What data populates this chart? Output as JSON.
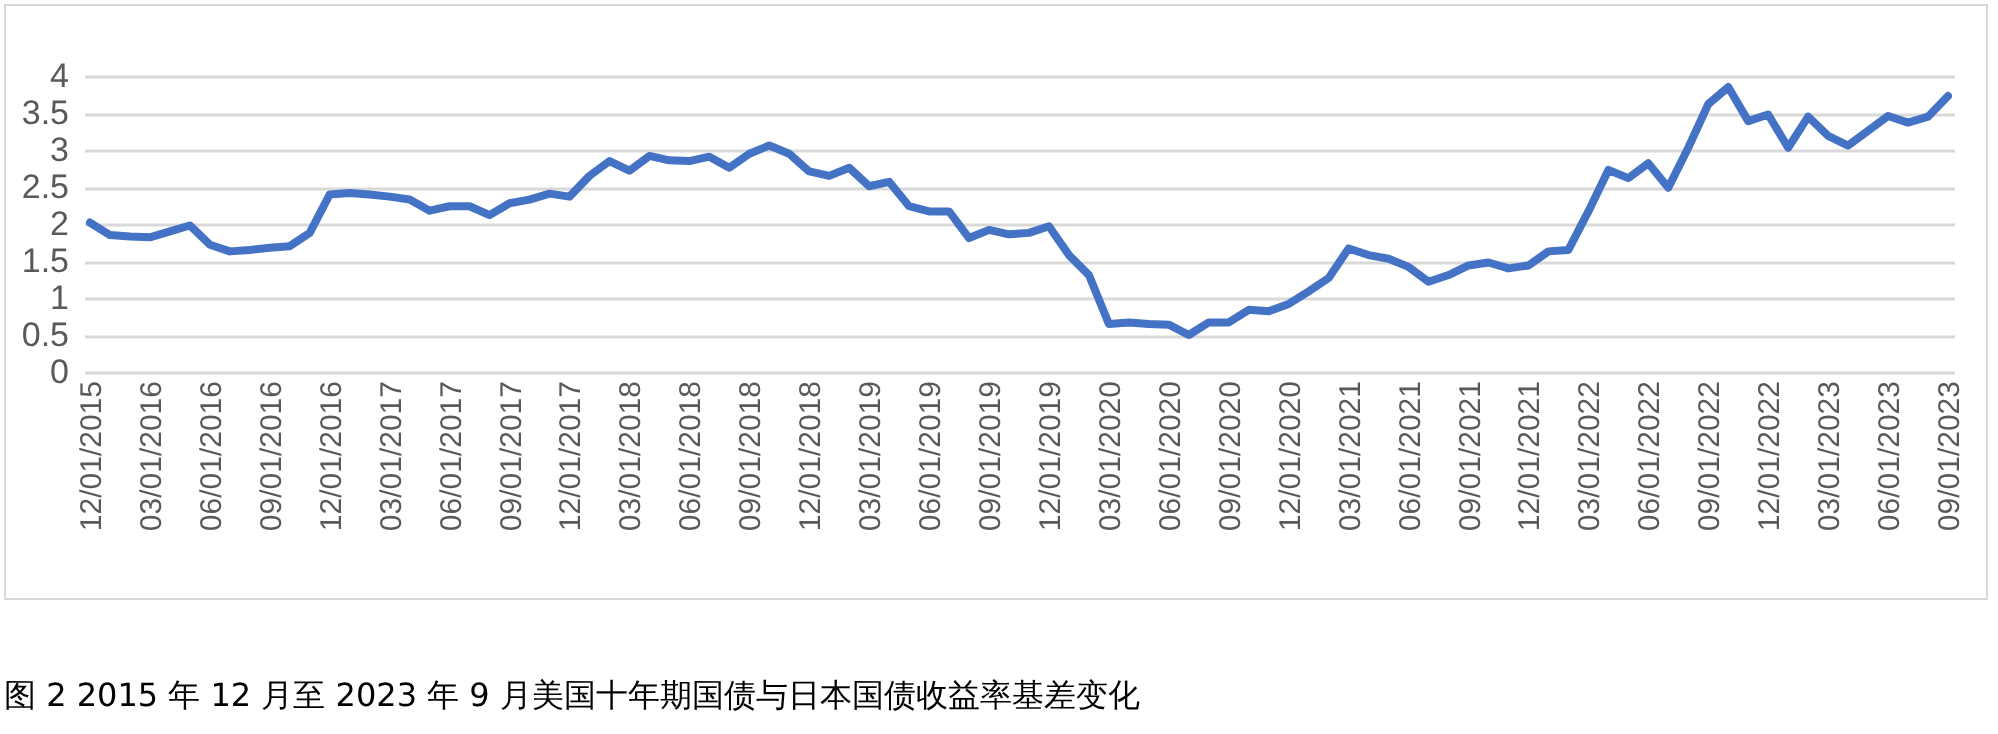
{
  "chart_data": {
    "type": "line",
    "categories": [
      "12/01/2015",
      null,
      null,
      "03/01/2016",
      null,
      null,
      "06/01/2016",
      null,
      null,
      "09/01/2016",
      null,
      null,
      "12/01/2016",
      null,
      null,
      "03/01/2017",
      null,
      null,
      "06/01/2017",
      null,
      null,
      "09/01/2017",
      null,
      null,
      "12/01/2017",
      null,
      null,
      "03/01/2018",
      null,
      null,
      "06/01/2018",
      null,
      null,
      "09/01/2018",
      null,
      null,
      "12/01/2018",
      null,
      null,
      "03/01/2019",
      null,
      null,
      "06/01/2019",
      null,
      null,
      "09/01/2019",
      null,
      null,
      "12/01/2019",
      null,
      null,
      "03/01/2020",
      null,
      null,
      "06/01/2020",
      null,
      null,
      "09/01/2020",
      null,
      null,
      "12/01/2020",
      null,
      null,
      "03/01/2021",
      null,
      null,
      "06/01/2021",
      null,
      null,
      "09/01/2021",
      null,
      null,
      "12/01/2021",
      null,
      null,
      "03/01/2022",
      null,
      null,
      "06/01/2022",
      null,
      null,
      "09/01/2022",
      null,
      null,
      "12/01/2022",
      null,
      null,
      "03/01/2023",
      null,
      null,
      "06/01/2023",
      null,
      null,
      "09/01/2023"
    ],
    "series": [
      {
        "color": "#4472c4",
        "values": [
          2.02,
          1.85,
          1.83,
          1.82,
          1.9,
          1.98,
          1.72,
          1.63,
          1.65,
          1.68,
          1.7,
          1.88,
          2.4,
          2.42,
          2.4,
          2.37,
          2.33,
          2.18,
          2.24,
          2.24,
          2.12,
          2.28,
          2.33,
          2.41,
          2.37,
          2.65,
          2.85,
          2.72,
          2.92,
          2.86,
          2.85,
          2.91,
          2.76,
          2.95,
          3.06,
          2.95,
          2.71,
          2.65,
          2.76,
          2.51,
          2.57,
          2.24,
          2.17,
          2.17,
          1.81,
          1.92,
          1.86,
          1.88,
          1.97,
          1.58,
          1.31,
          0.65,
          0.67,
          0.65,
          0.64,
          0.5,
          0.67,
          0.67,
          0.84,
          0.82,
          0.92,
          1.09,
          1.27,
          1.67,
          1.58,
          1.53,
          1.42,
          1.22,
          1.31,
          1.44,
          1.48,
          1.4,
          1.44,
          1.63,
          1.65,
          2.17,
          2.73,
          2.62,
          2.82,
          2.49,
          3.03,
          3.62,
          3.85,
          3.39,
          3.48,
          3.03,
          3.45,
          3.19,
          3.06,
          3.26,
          3.46,
          3.37,
          3.45,
          3.73
        ]
      }
    ],
    "ylim": [
      0,
      4
    ],
    "yticks": [
      0,
      0.5,
      1,
      1.5,
      2,
      2.5,
      3,
      3.5,
      4
    ],
    "grid": "y",
    "line_style": "solid",
    "annotations": [
      "图 2 2015 年 12 月至 2023 年 9 月美国十年期国债与日本国债收益率基差变化"
    ]
  }
}
